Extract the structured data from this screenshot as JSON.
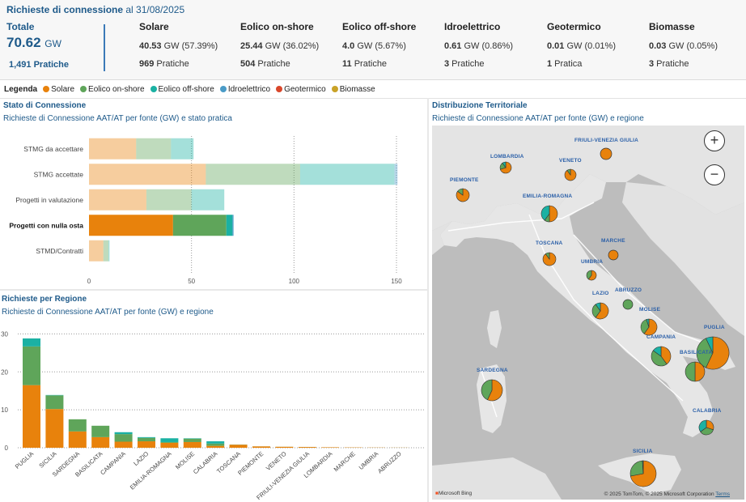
{
  "header": {
    "title_bold": "Richieste di connessione",
    "title_rest": " al 31/08/2025",
    "total_label": "Totale",
    "total_value": "70.62",
    "total_unit": "GW",
    "total_pratiche": "1,491 Pratiche",
    "sources": [
      {
        "name": "Solare",
        "gw": "40.53",
        "unit_pct": " GW (57.39%)",
        "pratiche": "969",
        "pratiche_label": " Pratiche"
      },
      {
        "name": "Eolico on-shore",
        "gw": "25.44",
        "unit_pct": " GW (36.02%)",
        "pratiche": "504",
        "pratiche_label": " Pratiche"
      },
      {
        "name": "Eolico off-shore",
        "gw": "4.0",
        "unit_pct": " GW (5.67%)",
        "pratiche": "11",
        "pratiche_label": " Pratiche"
      },
      {
        "name": "Idroelettrico",
        "gw": "0.61",
        "unit_pct": " GW (0.86%)",
        "pratiche": "3",
        "pratiche_label": " Pratiche"
      },
      {
        "name": "Geotermico",
        "gw": "0.01",
        "unit_pct": " GW (0.01%)",
        "pratiche": "1",
        "pratiche_label": " Pratica"
      },
      {
        "name": "Biomasse",
        "gw": "0.03",
        "unit_pct": " GW (0.05%)",
        "pratiche": "3",
        "pratiche_label": " Pratiche"
      }
    ]
  },
  "legend": {
    "title": "Legenda",
    "items": [
      {
        "label": "Solare",
        "color": "#e8820c"
      },
      {
        "label": "Eolico on-shore",
        "color": "#5fa55a"
      },
      {
        "label": "Eolico off-shore",
        "color": "#1bb1a3"
      },
      {
        "label": "Idroelettrico",
        "color": "#4a9bc7"
      },
      {
        "label": "Geotermico",
        "color": "#d9472b"
      },
      {
        "label": "Biomasse",
        "color": "#c9a227"
      }
    ]
  },
  "panels": {
    "stato_title": "Stato di Connessione",
    "stato_sub": "Richieste di Connessione AAT/AT per fonte (GW) e stato pratica",
    "regione_title": "Richieste per Regione",
    "regione_sub": "Richieste di Connessione AAT/AT per fonte (GW) e regione",
    "map_title": "Distribuzione Territoriale",
    "map_sub": "Richieste di Connessione AAT/AT per fonte (GW) e regione"
  },
  "chart_data": [
    {
      "type": "bar",
      "orientation": "horizontal",
      "stacked": true,
      "title": "Stato di Connessione",
      "subtitle": "Richieste di Connessione AAT/AT per fonte (GW) e stato pratica",
      "categories": [
        "STMG da accettare",
        "STMG accettate",
        "Progetti in valutazione",
        "Progetti con nulla osta",
        "STMD/Contratti"
      ],
      "highlighted": "Progetti con nulla osta",
      "series": [
        {
          "name": "Solare",
          "values": [
            23,
            57,
            28,
            41,
            7
          ]
        },
        {
          "name": "Eolico on-shore",
          "values": [
            17,
            46,
            22,
            26,
            2.5
          ]
        },
        {
          "name": "Eolico off-shore",
          "values": [
            11,
            46,
            16,
            3,
            0.5
          ]
        },
        {
          "name": "Idroelettrico",
          "values": [
            0,
            1.5,
            0,
            0.5,
            0
          ]
        }
      ],
      "xlim": [
        0,
        160
      ],
      "xticks": [
        0,
        50,
        100,
        150
      ]
    },
    {
      "type": "bar",
      "stacked": true,
      "title": "Richieste per Regione",
      "subtitle": "Richieste di Connessione AAT/AT per fonte (GW) e regione",
      "categories": [
        "PUGLIA",
        "SICILIA",
        "SARDEGNA",
        "BASILICATA",
        "CAMPANIA",
        "LAZIO",
        "EMILIA-ROMAGNA",
        "MOLISE",
        "CALABRIA",
        "TOSCANA",
        "PIEMONTE",
        "VENETO",
        "FRIULI-VENEZIA GIULIA",
        "LOMBARDIA",
        "MARCHE",
        "UMBRIA",
        "ABRUZZO"
      ],
      "series": [
        {
          "name": "Solare",
          "values": [
            16.5,
            10.2,
            4.3,
            2.8,
            1.6,
            1.7,
            1.3,
            1.5,
            0.5,
            0.8,
            0.35,
            0.25,
            0.2,
            0.12,
            0.08,
            0.05,
            0.03
          ]
        },
        {
          "name": "Eolico on-shore",
          "values": [
            10.2,
            3.6,
            3.2,
            3.0,
            2.0,
            0.9,
            0.2,
            0.9,
            0.6,
            0.05,
            0.02,
            0.02,
            0.02,
            0.01,
            0.01,
            0.01,
            0.01
          ]
        },
        {
          "name": "Eolico off-shore",
          "values": [
            2.1,
            0.1,
            0,
            0,
            0.5,
            0.2,
            1.0,
            0.1,
            0.6,
            0,
            0,
            0,
            0,
            0,
            0,
            0,
            0
          ]
        }
      ],
      "ylim": [
        0,
        32
      ],
      "yticks": [
        0,
        10,
        20,
        30
      ]
    }
  ],
  "map": {
    "zoom_in": "+",
    "zoom_out": "−",
    "regions": [
      {
        "name": "LOMBARDIA",
        "pie": [
          0.7,
          0.2,
          0.1
        ]
      },
      {
        "name": "FRIULI-VENEZIA GIULIA",
        "pie": [
          1,
          0,
          0
        ]
      },
      {
        "name": "VENETO",
        "pie": [
          0.9,
          0.1,
          0
        ]
      },
      {
        "name": "PIEMONTE",
        "pie": [
          0.85,
          0.15,
          0
        ]
      },
      {
        "name": "EMILIA-ROMAGNA",
        "pie": [
          0.5,
          0.1,
          0.4
        ]
      },
      {
        "name": "TOSCANA",
        "pie": [
          0.9,
          0.1,
          0
        ]
      },
      {
        "name": "MARCHE",
        "pie": [
          1,
          0,
          0
        ]
      },
      {
        "name": "UMBRIA",
        "pie": [
          0.6,
          0.4,
          0
        ]
      },
      {
        "name": "LAZIO",
        "pie": [
          0.6,
          0.3,
          0.1
        ]
      },
      {
        "name": "ABRUZZO",
        "pie": [
          0,
          1,
          0
        ]
      },
      {
        "name": "MOLISE",
        "pie": [
          0.6,
          0.35,
          0.05
        ]
      },
      {
        "name": "CAMPANIA",
        "pie": [
          0.4,
          0.45,
          0.15
        ]
      },
      {
        "name": "PUGLIA",
        "pie": [
          0.57,
          0.36,
          0.07
        ]
      },
      {
        "name": "BASILICATA",
        "pie": [
          0.5,
          0.5,
          0
        ]
      },
      {
        "name": "SARDEGNA",
        "pie": [
          0.57,
          0.43,
          0
        ]
      },
      {
        "name": "CALABRIA",
        "pie": [
          0.3,
          0.35,
          0.35
        ]
      },
      {
        "name": "SICILIA",
        "pie": [
          0.72,
          0.27,
          0.01
        ]
      }
    ],
    "bing_label": "Microsoft Bing",
    "attribution": "© 2025 TomTom, © 2025 Microsoft Corporation",
    "terms": "Terms"
  }
}
